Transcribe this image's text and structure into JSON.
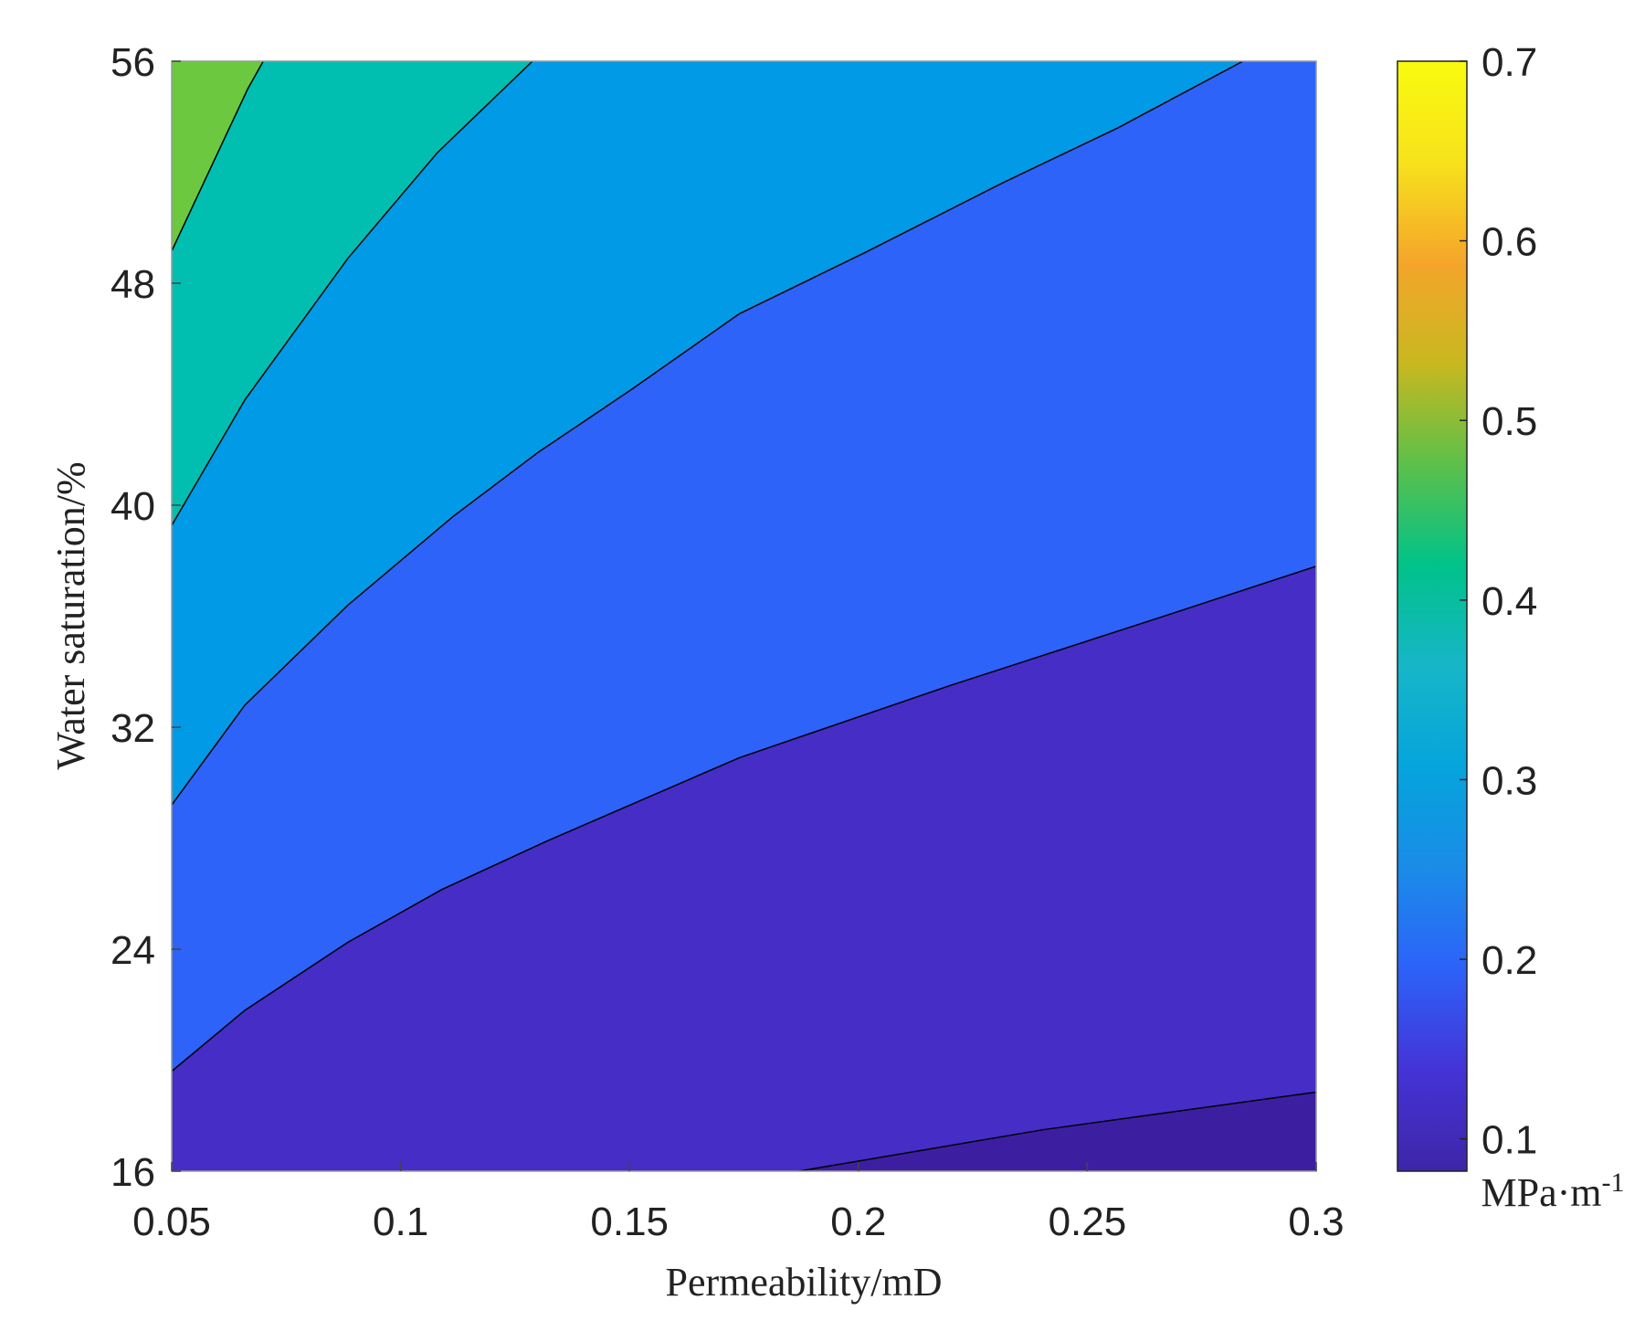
{
  "chart_data": {
    "type": "contour",
    "x_label": "Permeability/mD",
    "y_label": "Water saturation/%",
    "xlim": [
      0.05,
      0.3
    ],
    "ylim": [
      16,
      56
    ],
    "xticks": [
      0.05,
      0.1,
      0.15,
      0.2,
      0.25,
      0.3
    ],
    "yticks": [
      16,
      24,
      32,
      40,
      48,
      56
    ],
    "fills": [
      "#3c1fa0",
      "#452dc6",
      "#2d63f9",
      "#009ae6",
      "#00bfb0",
      "#6cc83e"
    ],
    "contours": [
      {
        "x": [
          0.187,
          0.2406,
          0.3
        ],
        "y": [
          16,
          17.5,
          18.85
        ]
      },
      {
        "x": [
          0.05,
          0.066,
          0.0885,
          0.109,
          0.132,
          0.174,
          0.22,
          0.266,
          0.3
        ],
        "y": [
          19.6,
          21.8,
          24.25,
          26.15,
          27.9,
          30.9,
          33.5,
          35.96,
          37.8
        ]
      },
      {
        "x": [
          0.05,
          0.066,
          0.0885,
          0.1115,
          0.13,
          0.1507,
          0.174,
          0.2014,
          0.2313,
          0.2567,
          0.284
        ],
        "y": [
          29.2,
          32.8,
          36.4,
          39.6,
          41.9,
          44.2,
          46.9,
          49.1,
          51.6,
          53.6,
          56
        ]
      },
      {
        "x": [
          0.05,
          0.066,
          0.0885,
          0.108,
          0.1288
        ],
        "y": [
          39.27,
          43.8,
          48.9,
          52.7,
          56
        ]
      },
      {
        "x": [
          0.05,
          0.0666,
          0.07
        ],
        "y": [
          49.16,
          55.0,
          56
        ]
      }
    ],
    "colormap": [
      "#3e26a8",
      "#4433d6",
      "#2d62f9",
      "#1a8ce8",
      "#05a4dc",
      "#16b6c8",
      "#00c28a",
      "#5cc04a",
      "#c8b820",
      "#f5a52a",
      "#f7e21c",
      "#f9fb0e"
    ],
    "clim": [
      0.082,
      0.7
    ],
    "cticks": [
      0.1,
      0.2,
      0.3,
      0.4,
      0.5,
      0.6,
      0.7
    ],
    "colorbar_label": {
      "base": "MPa·m",
      "sup": "-1"
    }
  }
}
